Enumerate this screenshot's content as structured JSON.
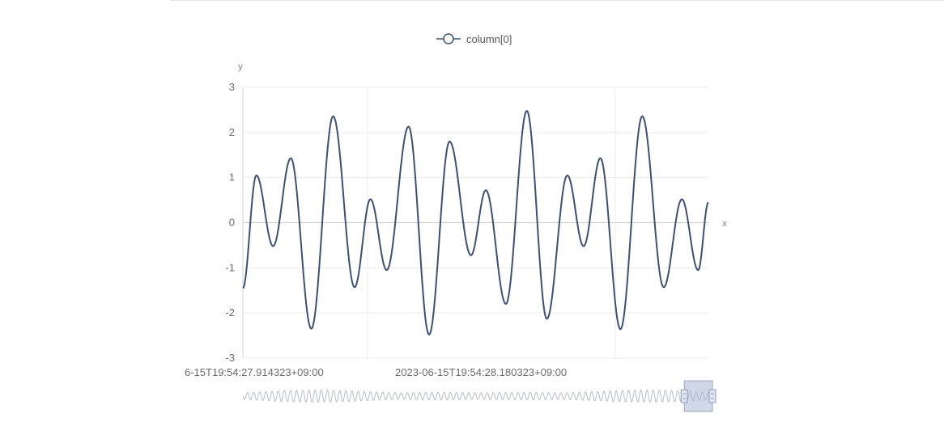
{
  "chart_data": {
    "type": "line",
    "title": "",
    "xlabel": "x",
    "ylabel": "y",
    "ylim": [
      -3,
      3
    ],
    "yticks": [
      "3",
      "2",
      "1",
      "0",
      "-1",
      "-2",
      "-3"
    ],
    "xtick_labels": [
      "6-15T19:54:27.914323+09:00",
      "2023-06-15T19:54:28.180323+09:00"
    ],
    "legend": {
      "position": "top-center"
    },
    "grid": true,
    "series": [
      {
        "name": "column[0]",
        "color": "#3e5170",
        "peaks": [
          {
            "t": 0.0,
            "y": -1.45
          },
          {
            "t": 0.029,
            "y": 1.05
          },
          {
            "t": 0.065,
            "y": -0.52
          },
          {
            "t": 0.103,
            "y": 1.43
          },
          {
            "t": 0.147,
            "y": -2.35
          },
          {
            "t": 0.194,
            "y": 2.36
          },
          {
            "t": 0.24,
            "y": -1.43
          },
          {
            "t": 0.274,
            "y": 0.52
          },
          {
            "t": 0.309,
            "y": -1.05
          },
          {
            "t": 0.356,
            "y": 2.13
          },
          {
            "t": 0.4,
            "y": -2.48
          },
          {
            "t": 0.444,
            "y": 1.8
          },
          {
            "t": 0.49,
            "y": -0.72
          },
          {
            "t": 0.522,
            "y": 0.72
          },
          {
            "t": 0.565,
            "y": -1.8
          },
          {
            "t": 0.61,
            "y": 2.48
          },
          {
            "t": 0.653,
            "y": -2.13
          },
          {
            "t": 0.697,
            "y": 1.05
          },
          {
            "t": 0.732,
            "y": -0.52
          },
          {
            "t": 0.768,
            "y": 1.43
          },
          {
            "t": 0.811,
            "y": -2.36
          },
          {
            "t": 0.858,
            "y": 2.36
          },
          {
            "t": 0.904,
            "y": -1.43
          },
          {
            "t": 0.943,
            "y": 0.52
          },
          {
            "t": 0.978,
            "y": -1.05
          },
          {
            "t": 1.0,
            "y": 0.45
          }
        ]
      }
    ],
    "data_zoom": {
      "range": [
        0.94,
        1.0
      ]
    }
  }
}
